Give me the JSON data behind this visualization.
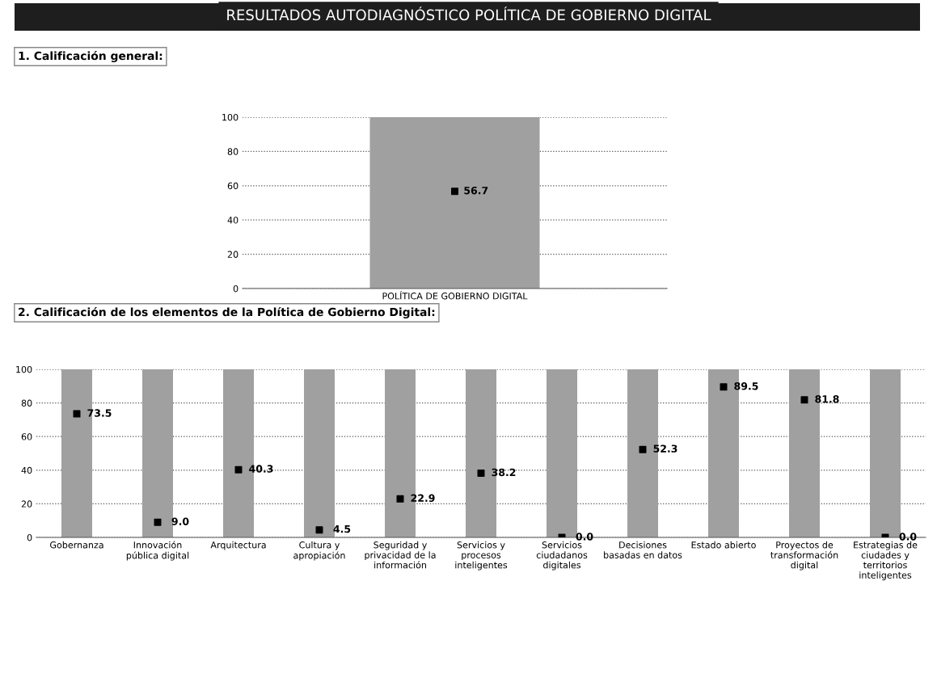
{
  "chart_data": [
    {
      "type": "bar",
      "title": "RESULTADOS AUTODIAGNÓSTICO POLÍTICA DE GOBIERNO DIGITAL",
      "subtitle": "1. Calificación general:",
      "categories": [
        "POLÍTICA DE GOBIERNO DIGITAL"
      ],
      "series": [
        {
          "color": "#a0a0a0",
          "values": [
            100
          ]
        },
        {
          "type": "scatter",
          "color": "#000000",
          "values": [
            56.7
          ],
          "value_labels": [
            "56.7"
          ]
        }
      ],
      "ylim": [
        0,
        100
      ],
      "yticks": [
        0,
        20,
        40,
        60,
        80,
        100
      ],
      "grid": "y",
      "line_style": "dotted",
      "marker": "square"
    },
    {
      "type": "bar",
      "title": "2. Calificación de los elementos de la Política de Gobierno Digital:",
      "categories": [
        "Gobernanza",
        "Innovación pública digital",
        "Arquitectura",
        "Cultura y apropiación",
        "Seguridad y privacidad de la información",
        "Servicios y procesos inteligentes",
        "Servicios ciudadanos digitales",
        "Decisiones basadas en datos",
        "Estado abierto",
        "Proyectos de transformación digital",
        "Estrategias de ciudades y territorios inteligentes"
      ],
      "series": [
        {
          "color": "#a0a0a0",
          "values": [
            100,
            100,
            100,
            100,
            100,
            100,
            100,
            100,
            100,
            100,
            100
          ]
        },
        {
          "type": "scatter",
          "color": "#000000",
          "values": [
            73.5,
            9.0,
            40.3,
            4.5,
            22.9,
            38.2,
            0.0,
            52.3,
            89.5,
            81.8,
            0.0
          ],
          "value_labels": [
            "73.5",
            "9.0",
            "40.3",
            "4.5",
            "22.9",
            "38.2",
            "0.0",
            "52.3",
            "89.5",
            "81.8",
            "0.0"
          ]
        }
      ],
      "ylim": [
        0,
        100
      ],
      "yticks": [
        0,
        20,
        40,
        60,
        80,
        100
      ],
      "grid": "y",
      "line_style": "dotted",
      "marker": "square"
    }
  ]
}
